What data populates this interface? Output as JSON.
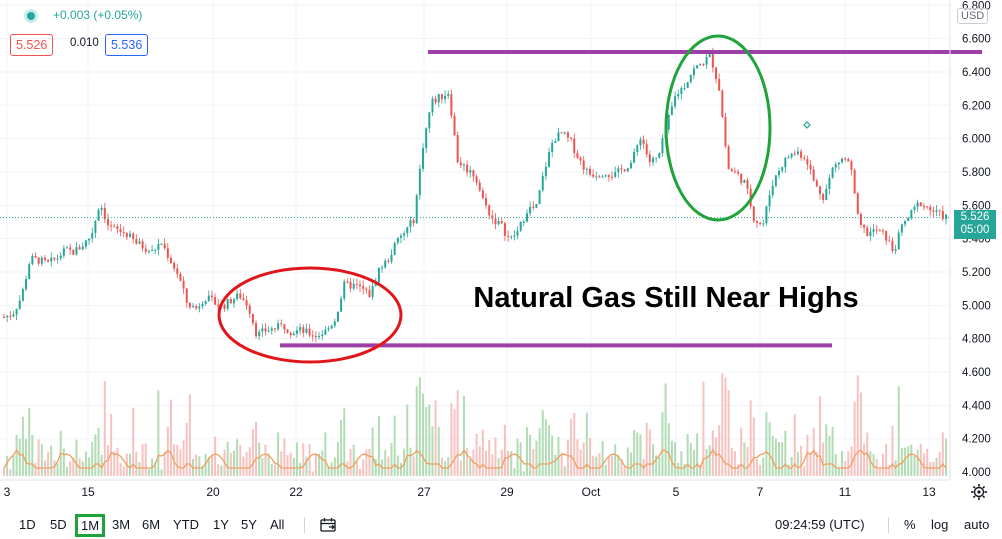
{
  "header": {
    "change_text": "+0.003 (+0.05%)",
    "bid": "5.526",
    "spread": "0.010",
    "ask": "5.536",
    "currency": "USD"
  },
  "annotation": {
    "text": "Natural Gas Still Near Highs"
  },
  "price_label": {
    "price": "5.526",
    "countdown": "05:00"
  },
  "colors": {
    "up": "#26a69a",
    "down": "#ef5350",
    "resistance": "#9c3fa7",
    "red_circle": "#e1161b",
    "green_circle": "#1fa33a",
    "volume_ma": "#f0a060",
    "change_text": "#26a69a",
    "bid_box": "#ef5350",
    "ask_box": "#2962ff"
  },
  "toolbar": {
    "ranges": [
      "1D",
      "5D",
      "1M",
      "3M",
      "6M",
      "YTD",
      "1Y",
      "5Y",
      "All"
    ],
    "active_range": "1M",
    "time": "09:24:59 (UTC)",
    "percent": "%",
    "log": "log",
    "auto": "auto"
  },
  "chart_data": {
    "type": "candlestick",
    "x_tick_labels": [
      "3",
      "15",
      "20",
      "22",
      "27",
      "29",
      "Oct",
      "5",
      "7",
      "11",
      "13"
    ],
    "y_tick_labels": [
      "6.800",
      "6.600",
      "6.400",
      "6.200",
      "6.000",
      "5.800",
      "5.600",
      "5.400",
      "5.200",
      "5.000",
      "4.800",
      "4.600",
      "4.400",
      "4.200",
      "4.000"
    ],
    "ylim": [
      4.0,
      6.8
    ],
    "last_price": 5.526,
    "resistance_level": 6.52,
    "support_level": 4.76,
    "price_path": [
      4.93,
      4.95,
      5.05,
      5.28,
      5.27,
      5.25,
      5.28,
      5.33,
      5.32,
      5.36,
      5.42,
      5.62,
      5.47,
      5.45,
      5.43,
      5.38,
      5.35,
      5.32,
      5.38,
      5.28,
      5.18,
      5.01,
      4.98,
      5.05,
      5.02,
      4.99,
      5.03,
      5.06,
      5.0,
      4.82,
      4.85,
      4.86,
      4.88,
      4.84,
      4.85,
      4.83,
      4.82,
      4.85,
      4.92,
      5.12,
      5.12,
      5.1,
      5.06,
      5.22,
      5.27,
      5.38,
      5.44,
      5.52,
      5.95,
      6.22,
      6.25,
      6.28,
      5.87,
      5.82,
      5.78,
      5.62,
      5.52,
      5.48,
      5.39,
      5.45,
      5.58,
      5.58,
      5.82,
      6.0,
      6.03,
      5.98,
      5.87,
      5.79,
      5.79,
      5.8,
      5.78,
      5.82,
      5.86,
      6.02,
      5.86,
      5.88,
      6.08,
      6.26,
      6.32,
      6.41,
      6.45,
      6.5,
      6.3,
      5.82,
      5.79,
      5.73,
      5.52,
      5.48,
      5.72,
      5.83,
      5.9,
      5.92,
      5.88,
      5.72,
      5.65,
      5.82,
      5.88,
      5.86,
      5.48,
      5.43,
      5.45,
      5.42,
      5.32,
      5.48,
      5.55,
      5.62,
      5.58,
      5.55,
      5.53
    ],
    "volume_note": "volume histogram with moving average along bottom"
  },
  "tick_prices": [
    6.8,
    6.6,
    6.4,
    6.2,
    6.0,
    5.8,
    5.6,
    5.4,
    5.2,
    5.0,
    4.8,
    4.6,
    4.4,
    4.2,
    4.0
  ]
}
